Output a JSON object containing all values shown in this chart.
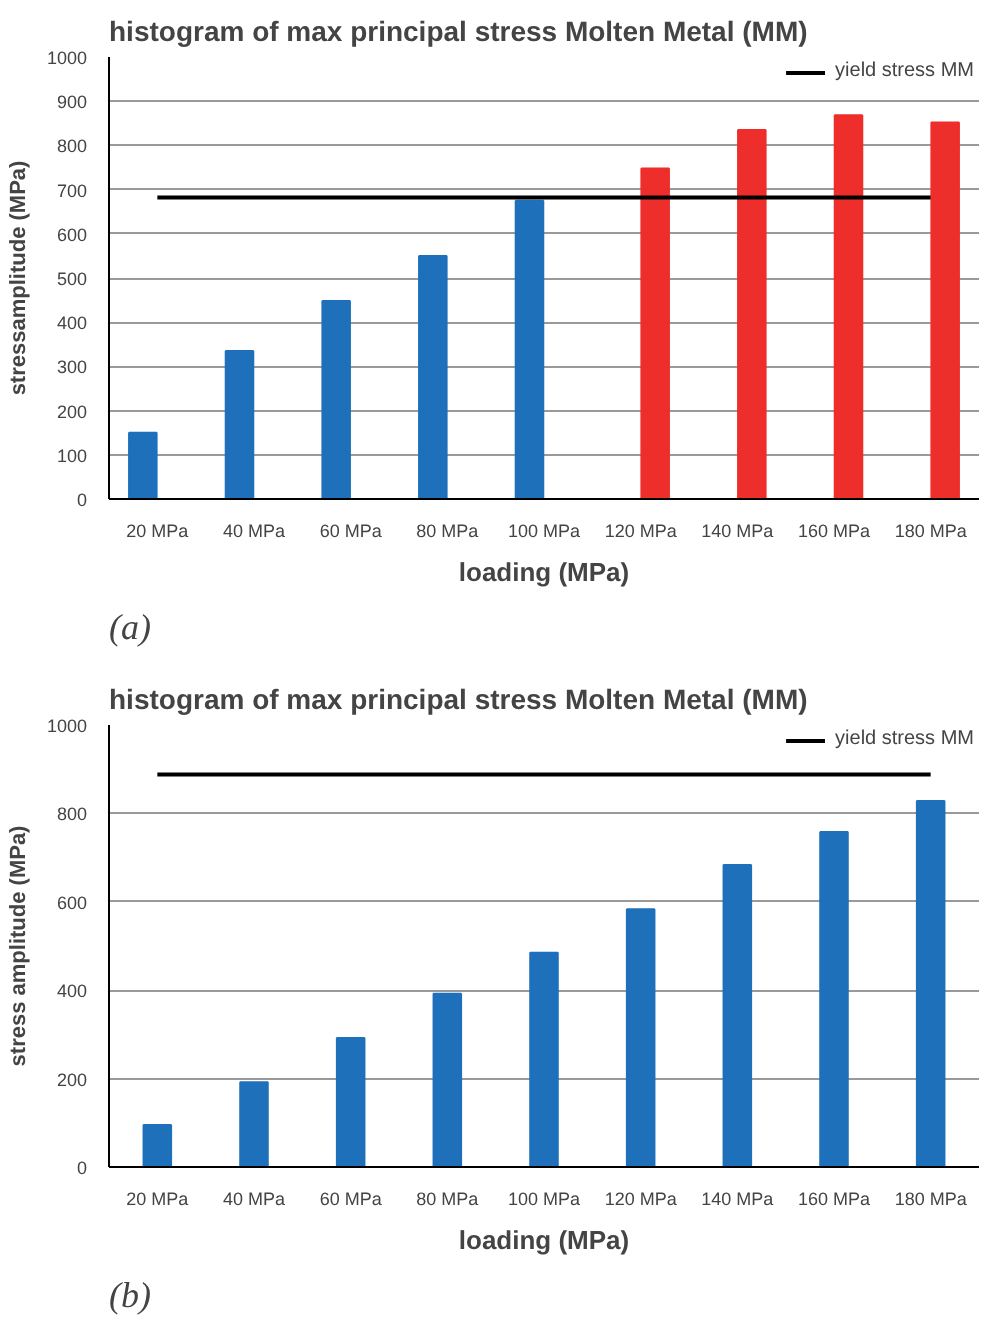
{
  "chart_data": [
    {
      "type": "bar",
      "title": "histogram of max principal stress  Molten Metal (MM)",
      "xlabel": "loading (MPa)",
      "ylabel": "stressamplitude (MPa)",
      "categories": [
        "20 MPa",
        "40 MPa",
        "60 MPa",
        "80 MPa",
        "100 MPa",
        "120 MPa",
        "140 MPa",
        "160 MPa",
        "180 MPa"
      ],
      "series": [
        {
          "color": "#1f70ba",
          "values": [
            150,
            335,
            448,
            550,
            675,
            null,
            null,
            null,
            null
          ]
        },
        {
          "color": "#ee2e2b",
          "values": [
            null,
            null,
            null,
            null,
            null,
            748,
            835,
            868,
            852
          ]
        },
        {
          "type": "line",
          "name": "yield stress MM",
          "color": "#000000",
          "values": [
            682,
            682,
            682,
            682,
            682,
            682,
            682,
            682,
            682
          ]
        }
      ],
      "ylim": [
        0,
        1000
      ],
      "yticks": [
        0,
        100,
        200,
        300,
        400,
        500,
        600,
        700,
        800,
        900,
        1000
      ],
      "grid": "y",
      "legend": "top right",
      "annotations": [
        "(a)"
      ]
    },
    {
      "type": "bar",
      "title": "histogram of max principal stress  Molten Metal (MM)",
      "xlabel": "loading (MPa)",
      "ylabel": "stress amplitude (MPa)",
      "categories": [
        "20 MPa",
        "40 MPa",
        "60 MPa",
        "80 MPa",
        "100 MPa",
        "120 MPa",
        "140 MPa",
        "160 MPa",
        "180 MPa"
      ],
      "series": [
        {
          "color": "#1f70ba",
          "values": [
            95,
            192,
            292,
            392,
            485,
            583,
            683,
            758,
            828
          ]
        },
        {
          "type": "line",
          "name": "yield stress MM",
          "color": "#000000",
          "values": [
            888,
            888,
            888,
            888,
            888,
            888,
            888,
            888,
            888
          ]
        }
      ],
      "ylim": [
        0,
        1000
      ],
      "yticks": [
        0,
        200,
        400,
        600,
        800,
        1000
      ],
      "grid": "y",
      "legend": "top right",
      "annotations": [
        "(b)"
      ]
    }
  ]
}
